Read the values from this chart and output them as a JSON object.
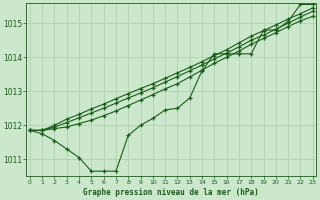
{
  "title": "Graphe pression niveau de la mer (hPa)",
  "background_color": "#cce8cc",
  "grid_color": "#aaccaa",
  "line_color": "#1a5c1a",
  "x_ticks": [
    0,
    1,
    2,
    3,
    4,
    5,
    6,
    7,
    8,
    9,
    10,
    11,
    12,
    13,
    14,
    15,
    16,
    17,
    18,
    19,
    20,
    21,
    22,
    23
  ],
  "ylim": [
    1010.5,
    1015.6
  ],
  "yticks": [
    1011,
    1012,
    1013,
    1014,
    1015
  ],
  "line1_x": [
    0,
    1,
    2,
    3,
    4,
    5,
    6,
    7,
    8,
    9,
    10,
    11,
    12,
    13,
    14,
    15,
    16,
    17,
    18,
    19,
    20,
    21,
    22,
    23
  ],
  "line1_y": [
    1011.85,
    1011.75,
    1011.55,
    1011.3,
    1011.05,
    1010.65,
    1010.65,
    1010.65,
    1011.7,
    1012.0,
    1012.2,
    1012.45,
    1012.5,
    1012.8,
    1013.6,
    1014.1,
    1014.1,
    1014.1,
    1014.1,
    1014.8,
    1014.8,
    1015.05,
    1015.55,
    1015.55
  ],
  "line2_x": [
    0,
    1,
    2,
    3,
    4,
    5,
    6,
    7,
    8,
    9,
    10,
    11,
    12,
    13,
    14,
    15,
    16,
    17,
    18,
    19,
    20,
    21,
    22,
    23
  ],
  "line2_y": [
    1011.85,
    1011.85,
    1011.9,
    1011.95,
    1012.05,
    1012.15,
    1012.28,
    1012.42,
    1012.58,
    1012.74,
    1012.9,
    1013.07,
    1013.22,
    1013.42,
    1013.62,
    1013.82,
    1014.0,
    1014.18,
    1014.38,
    1014.55,
    1014.72,
    1014.9,
    1015.07,
    1015.2
  ],
  "line3_x": [
    0,
    1,
    2,
    3,
    4,
    5,
    6,
    7,
    8,
    9,
    10,
    11,
    12,
    13,
    14,
    15,
    16,
    17,
    18,
    19,
    20,
    21,
    22,
    23
  ],
  "line3_y": [
    1011.85,
    1011.85,
    1011.95,
    1012.08,
    1012.22,
    1012.36,
    1012.5,
    1012.65,
    1012.8,
    1012.95,
    1013.1,
    1013.27,
    1013.43,
    1013.6,
    1013.77,
    1013.95,
    1014.12,
    1014.3,
    1014.5,
    1014.65,
    1014.82,
    1015.0,
    1015.18,
    1015.35
  ],
  "line4_x": [
    0,
    1,
    2,
    3,
    4,
    5,
    6,
    7,
    8,
    9,
    10,
    11,
    12,
    13,
    14,
    15,
    16,
    17,
    18,
    19,
    20,
    21,
    22,
    23
  ],
  "line4_y": [
    1011.85,
    1011.85,
    1012.0,
    1012.18,
    1012.32,
    1012.48,
    1012.62,
    1012.78,
    1012.93,
    1013.08,
    1013.22,
    1013.38,
    1013.54,
    1013.7,
    1013.87,
    1014.05,
    1014.22,
    1014.42,
    1014.62,
    1014.78,
    1014.95,
    1015.12,
    1015.28,
    1015.45
  ]
}
